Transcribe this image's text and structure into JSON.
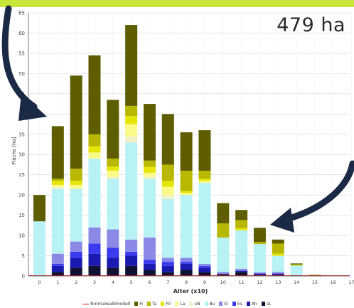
{
  "page": {
    "accent_strip_color": "#c8e63a",
    "area_label": "479 ha"
  },
  "annotations": {
    "arrow_color": "#1b2a44",
    "arrows": [
      {
        "from": "top-left",
        "to": "tall bars",
        "name": "arrow-left-icon"
      },
      {
        "from": "right",
        "to": "old stands",
        "name": "arrow-right-icon"
      }
    ]
  },
  "chart_data": {
    "type": "bar",
    "stacked": true,
    "xlabel": "Alter (x10)",
    "ylabel": "Fläche [ha]",
    "ylim": [
      0,
      65
    ],
    "yticks": [
      0,
      5,
      10,
      15,
      20,
      25,
      30,
      35,
      40,
      45,
      50,
      55,
      60,
      65
    ],
    "x_tick_labels": [
      "0",
      "1",
      "2",
      "3",
      "4",
      "5",
      "6",
      "7",
      "8",
      "9",
      "10",
      "11",
      "12",
      "13",
      "14",
      "15",
      "16",
      "17"
    ],
    "categories": [
      "0",
      "1",
      "2",
      "3",
      "4",
      "5",
      "6",
      "7",
      "8",
      "9",
      "10",
      "11",
      "12",
      "13",
      "14",
      "15"
    ],
    "grid": true,
    "legend_position": "bottom",
    "series": [
      {
        "name": "üL",
        "color": "#111133",
        "values": [
          0,
          1.0,
          2.0,
          2.5,
          2.0,
          2.5,
          1.5,
          1.0,
          1.5,
          1.0,
          0.5,
          1.0,
          0.3,
          0.3,
          0.1,
          0.05
        ]
      },
      {
        "name": "Ah",
        "color": "#1a1ab0",
        "values": [
          0,
          1.5,
          2.5,
          3.0,
          2.5,
          2.5,
          1.5,
          1.5,
          1.5,
          1.0,
          0,
          0.3,
          0.3,
          0.3,
          0,
          0
        ]
      },
      {
        "name": "Es",
        "color": "#3a3aee",
        "values": [
          0,
          0.5,
          1.5,
          2.5,
          2.5,
          1.0,
          1.0,
          1.0,
          0.5,
          0.5,
          0,
          0,
          0,
          0,
          0,
          0
        ]
      },
      {
        "name": "Ei",
        "color": "#8a8ae6",
        "values": [
          0,
          2.5,
          2.5,
          4.0,
          4.5,
          3.0,
          5.5,
          1.0,
          1.0,
          0.5,
          0.5,
          0.5,
          0.3,
          0.4,
          0,
          0
        ]
      },
      {
        "name": "Bu",
        "color": "#b8f2f4",
        "values": [
          13.5,
          16.0,
          13.0,
          17.0,
          12.5,
          24.0,
          14.5,
          14.5,
          15.5,
          20.0,
          8.5,
          9.5,
          7.0,
          4.0,
          2.5,
          0.1
        ]
      },
      {
        "name": "uN",
        "color": "#f2f2c4",
        "values": [
          0,
          0.5,
          0,
          0,
          0.5,
          1.5,
          0.5,
          1.0,
          0,
          0,
          0,
          0,
          0,
          0,
          0,
          0
        ]
      },
      {
        "name": "La",
        "color": "#fafa88",
        "values": [
          0,
          0.5,
          1.0,
          1.5,
          1.5,
          3.0,
          1.0,
          2.0,
          0.5,
          0.5,
          0,
          0,
          0,
          0,
          0,
          0
        ]
      },
      {
        "name": "Fö",
        "color": "#e6e60a",
        "values": [
          0,
          1.0,
          1.0,
          1.5,
          1.0,
          2.0,
          1.5,
          1.5,
          0.5,
          0.5,
          0,
          0.5,
          0,
          0.5,
          0,
          0
        ]
      },
      {
        "name": "Ta",
        "color": "#b8b800",
        "values": [
          0,
          0.5,
          3.0,
          3.0,
          2.0,
          2.5,
          1.5,
          4.0,
          5.0,
          2.0,
          3.5,
          2.0,
          0.5,
          2.5,
          0.3,
          0.1
        ]
      },
      {
        "name": "Fi",
        "color": "#5e5e00",
        "values": [
          6.5,
          13.0,
          23.0,
          19.5,
          14.5,
          20.0,
          14.0,
          12.5,
          9.5,
          10.0,
          5.0,
          2.5,
          3.5,
          1.0,
          0.2,
          0.05
        ]
      }
    ],
    "reference_line": {
      "name": "Normalwaldmodell",
      "color": "#e01010"
    }
  }
}
